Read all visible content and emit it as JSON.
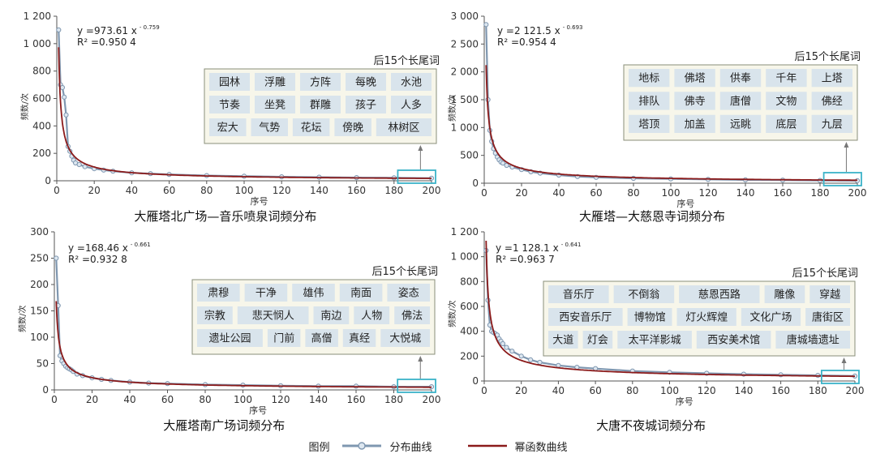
{
  "legend": {
    "label": "图例",
    "distribution": "分布曲线",
    "power": "幂函数曲线"
  },
  "colors": {
    "distribution": "#7f97b0",
    "distribution_marker_fill": "#dde7f0",
    "power": "#8b1a1a",
    "box_border": "#3bb3c8",
    "panel_bg": "#f7f6ea",
    "tag_bg": "#d9e4ec"
  },
  "chart_data": [
    {
      "type": "line",
      "title": "大雁塔北广场—音乐喷泉词频分布",
      "xlabel": "序号",
      "ylabel": "频数/次",
      "xlim": [
        0,
        200
      ],
      "ylim": [
        0,
        1200
      ],
      "xticks": [
        "0",
        "20",
        "40",
        "60",
        "80",
        "100",
        "120",
        "140",
        "160",
        "180",
        "200"
      ],
      "yticks": [
        "0",
        "200",
        "400",
        "600",
        "800",
        "1 000",
        "1 200"
      ],
      "equation": "y =973.61 x",
      "exponent": "- 0.759",
      "r2": "R² =0.950 4",
      "tail_title": "后15个长尾词",
      "tail_words": [
        [
          "园林",
          "浮雕",
          "方阵",
          "每晚",
          "水池"
        ],
        [
          "节奏",
          "坐凳",
          "群雕",
          "孩子",
          "人多"
        ],
        [
          "宏大",
          "气势",
          "花坛",
          "傍晚",
          "林树区"
        ]
      ],
      "series": [
        {
          "name": "分布曲线",
          "x": [
            1,
            2,
            3,
            4,
            5,
            6,
            7,
            8,
            9,
            10,
            12,
            15,
            20,
            25,
            30,
            40,
            50,
            60,
            80,
            100,
            120,
            140,
            160,
            180,
            200
          ],
          "y": [
            1100,
            700,
            680,
            610,
            480,
            250,
            215,
            180,
            150,
            130,
            118,
            103,
            88,
            78,
            70,
            58,
            52,
            46,
            38,
            33,
            29,
            26,
            23,
            21,
            19
          ]
        },
        {
          "name": "幂函数曲线",
          "a": 973.61,
          "b": -0.759
        }
      ]
    },
    {
      "type": "line",
      "title": "大雁塔—大慈恩寺词频分布",
      "xlabel": "序号",
      "ylabel": "频数/次",
      "xlim": [
        0,
        200
      ],
      "ylim": [
        0,
        3000
      ],
      "xticks": [
        "0",
        "20",
        "40",
        "60",
        "80",
        "100",
        "120",
        "140",
        "160",
        "180",
        "200"
      ],
      "yticks": [
        "0",
        "500",
        "1 000",
        "1 500",
        "2 000",
        "2 500",
        "3 000"
      ],
      "equation": "y =2 121.5 x",
      "exponent": "- 0.693",
      "r2": "R² =0.954 4",
      "tail_title": "后15个长尾词",
      "tail_words": [
        [
          "地标",
          "佛塔",
          "供奉",
          "千年",
          "上塔"
        ],
        [
          "排队",
          "佛寺",
          "唐僧",
          "文物",
          "佛经"
        ],
        [
          "塔顶",
          "加盖",
          "远眺",
          "底层",
          "九层"
        ]
      ],
      "series": [
        {
          "name": "分布曲线",
          "x": [
            1,
            2,
            3,
            4,
            5,
            6,
            7,
            8,
            9,
            10,
            12,
            15,
            20,
            25,
            30,
            40,
            50,
            60,
            80,
            100,
            120,
            140,
            160,
            180,
            200
          ],
          "y": [
            2850,
            1500,
            950,
            750,
            620,
            540,
            470,
            420,
            380,
            360,
            320,
            290,
            245,
            205,
            180,
            145,
            120,
            105,
            88,
            77,
            68,
            60,
            55,
            50,
            45
          ]
        },
        {
          "name": "幂函数曲线",
          "a": 2121.5,
          "b": -0.693
        }
      ]
    },
    {
      "type": "line",
      "title": "大雁塔南广场词频分布",
      "xlabel": "序号",
      "ylabel": "频数/次",
      "xlim": [
        0,
        200
      ],
      "ylim": [
        0,
        300
      ],
      "xticks": [
        "0",
        "20",
        "40",
        "60",
        "80",
        "100",
        "120",
        "140",
        "160",
        "180",
        "200"
      ],
      "yticks": [
        "0",
        "50",
        "100",
        "150",
        "200",
        "250",
        "300"
      ],
      "equation": "y =168.46 x",
      "exponent": "- 0.661",
      "r2": "R² =0.932 8",
      "tail_title": "后15个长尾词",
      "tail_words": [
        [
          "肃穆",
          "干净",
          "雄伟",
          "南面",
          "姿态"
        ],
        [
          "宗教",
          "悲天悯人",
          "南边",
          "人物",
          "佛法"
        ],
        [
          "遗址公园",
          "门前",
          "高僧",
          "真经",
          "大悦城"
        ]
      ],
      "series": [
        {
          "name": "分布曲线",
          "x": [
            1,
            2,
            3,
            4,
            5,
            6,
            7,
            8,
            9,
            10,
            12,
            15,
            20,
            25,
            30,
            40,
            50,
            60,
            80,
            100,
            120,
            140,
            160,
            180,
            200
          ],
          "y": [
            250,
            160,
            65,
            55,
            50,
            45,
            42,
            40,
            38,
            35,
            30,
            27,
            23,
            20,
            18,
            15,
            13,
            12,
            10,
            9,
            8,
            7,
            7,
            6,
            6
          ]
        },
        {
          "name": "幂函数曲线",
          "a": 168.46,
          "b": -0.661
        }
      ]
    },
    {
      "type": "line",
      "title": "大唐不夜城词频分布",
      "xlabel": "序号",
      "ylabel": "频数/次",
      "xlim": [
        0,
        200
      ],
      "ylim": [
        0,
        1200
      ],
      "xticks": [
        "0",
        "20",
        "40",
        "60",
        "80",
        "100",
        "120",
        "140",
        "160",
        "180",
        "200"
      ],
      "yticks": [
        "0",
        "200",
        "400",
        "600",
        "800",
        "1 000",
        "1 200"
      ],
      "equation": "y =1 128.1 x",
      "exponent": "- 0.641",
      "r2": "R² =0.963 7",
      "tail_title": "后15个长尾词",
      "tail_words": [
        [
          "音乐厅",
          "不倒翁",
          "慈恩西路",
          "雕像",
          "穿越"
        ],
        [
          "西安音乐厅",
          "博物馆",
          "灯火辉煌",
          "文化广场",
          "唐街区"
        ],
        [
          "大道",
          "灯会",
          "太平洋影城",
          "西安美术馆",
          "唐城墙遗址"
        ]
      ],
      "series": [
        {
          "name": "分布曲线",
          "x": [
            1,
            2,
            3,
            4,
            5,
            6,
            7,
            8,
            9,
            10,
            12,
            15,
            20,
            25,
            30,
            40,
            50,
            60,
            80,
            100,
            120,
            140,
            160,
            180,
            200
          ],
          "y": [
            1050,
            650,
            450,
            400,
            390,
            380,
            370,
            340,
            320,
            300,
            270,
            240,
            200,
            170,
            150,
            125,
            110,
            100,
            80,
            70,
            62,
            55,
            50,
            45,
            40
          ]
        },
        {
          "name": "幂函数曲线",
          "a": 1128.1,
          "b": -0.641
        }
      ]
    }
  ]
}
